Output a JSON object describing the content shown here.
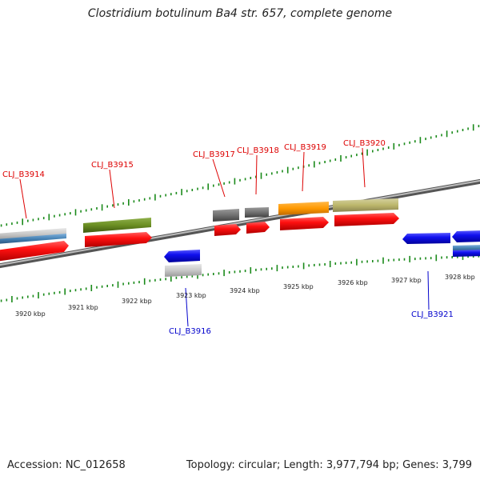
{
  "title": "Clostridium botulinum Ba4 str. 657, complete genome",
  "accession": "Accession: NC_012658",
  "summary": "Topology: circular; Length: 3,977,794 bp; Genes: 3,799",
  "colors": {
    "forward_label": "#dd0000",
    "reverse_label": "#0000cc",
    "tick": "#1a8a1a",
    "backbone": "#808080",
    "cds_forward": "#ff1010",
    "cds_reverse": "#1010ee"
  },
  "coordinate_labels": [
    "3920 kbp",
    "3921 kbp",
    "3922 kbp",
    "3923 kbp",
    "3924 kbp",
    "3925 kbp",
    "3926 kbp",
    "3927 kbp",
    "3928 kbp"
  ],
  "genes": {
    "forward": [
      "CLJ_B3914",
      "CLJ_B3915",
      "CLJ_B3917",
      "CLJ_B3918",
      "CLJ_B3919",
      "CLJ_B3920"
    ],
    "reverse": [
      "CLJ_B3916",
      "CLJ_B3921"
    ]
  }
}
